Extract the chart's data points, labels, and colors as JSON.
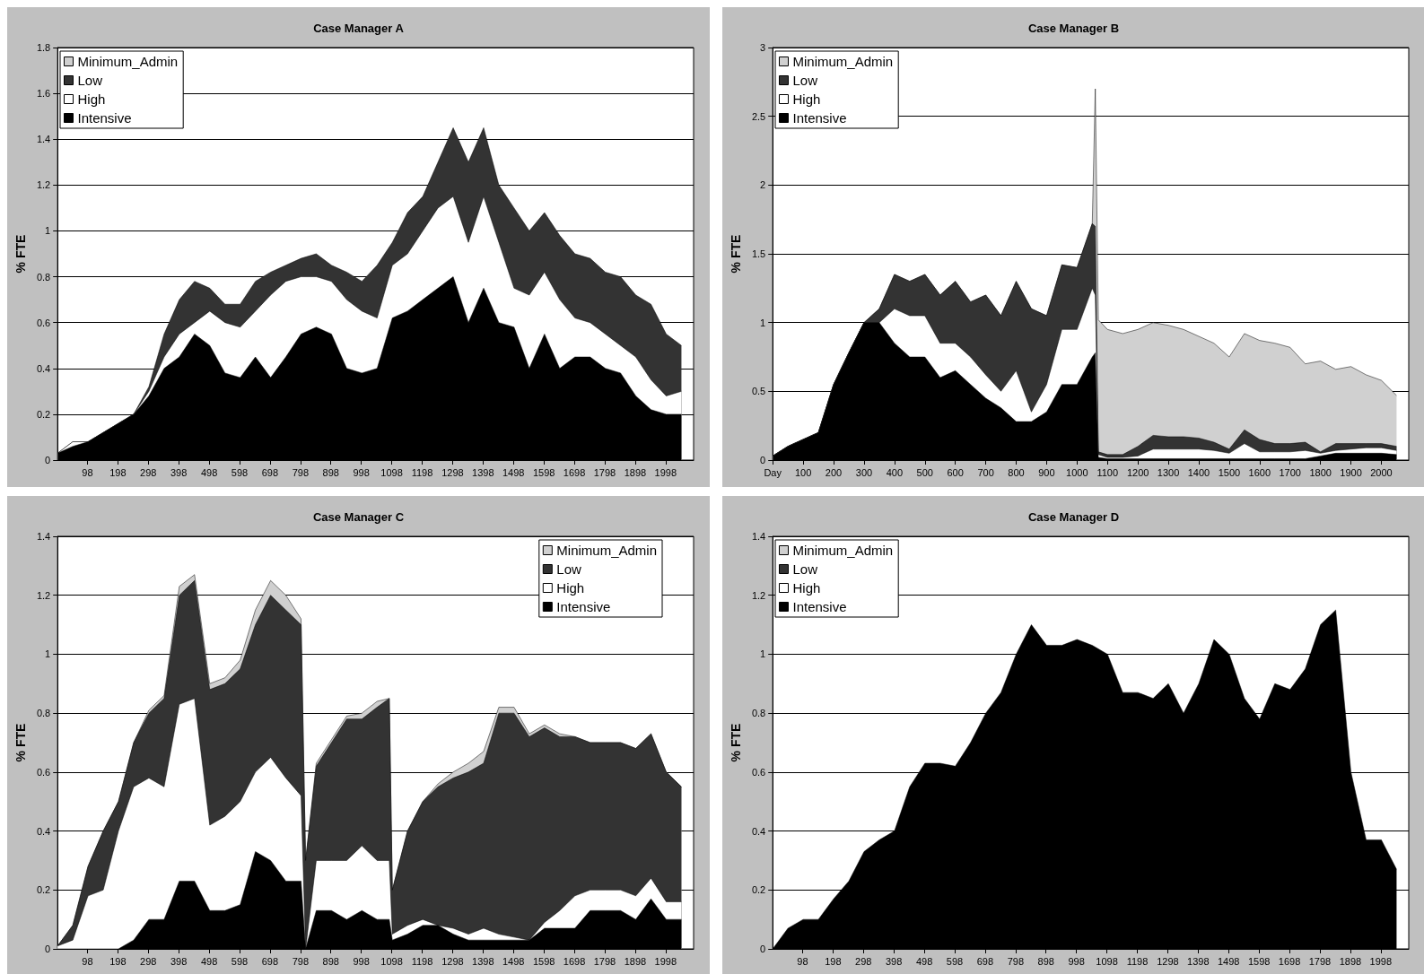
{
  "chart_data": [
    {
      "type": "area",
      "title": "Case Manager A",
      "ylabel": "% FTE",
      "stacked": true,
      "legend": "top left",
      "grid": "y",
      "xlim": [
        0,
        2090
      ],
      "ylim": [
        0,
        1.8
      ],
      "yticks": [
        0,
        0.2,
        0.4,
        0.6,
        0.8,
        1,
        1.2,
        1.4,
        1.6,
        1.8
      ],
      "xticks": [
        98,
        198,
        298,
        398,
        498,
        598,
        698,
        798,
        898,
        998,
        1098,
        1198,
        1298,
        1398,
        1498,
        1598,
        1698,
        1798,
        1898,
        1998
      ],
      "x": [
        0,
        50,
        100,
        150,
        200,
        250,
        300,
        350,
        400,
        450,
        500,
        550,
        600,
        650,
        700,
        750,
        800,
        850,
        900,
        950,
        1000,
        1050,
        1100,
        1150,
        1200,
        1250,
        1300,
        1350,
        1400,
        1450,
        1500,
        1550,
        1600,
        1650,
        1700,
        1750,
        1800,
        1850,
        1900,
        1950,
        2000,
        2050
      ],
      "series": [
        {
          "name": "Intensive",
          "color": "#000000",
          "values": [
            0.03,
            0.06,
            0.08,
            0.12,
            0.16,
            0.2,
            0.28,
            0.4,
            0.45,
            0.55,
            0.5,
            0.38,
            0.36,
            0.45,
            0.36,
            0.45,
            0.55,
            0.58,
            0.55,
            0.4,
            0.38,
            0.4,
            0.62,
            0.65,
            0.7,
            0.75,
            0.8,
            0.6,
            0.75,
            0.6,
            0.58,
            0.4,
            0.55,
            0.4,
            0.45,
            0.45,
            0.4,
            0.38,
            0.28,
            0.22,
            0.2,
            0.2
          ]
        },
        {
          "name": "High",
          "color": "#ffffff",
          "values": [
            0,
            0.02,
            0,
            0,
            0,
            0,
            0.02,
            0.05,
            0.1,
            0.05,
            0.15,
            0.22,
            0.22,
            0.2,
            0.36,
            0.33,
            0.25,
            0.22,
            0.23,
            0.3,
            0.27,
            0.22,
            0.23,
            0.25,
            0.3,
            0.35,
            0.35,
            0.35,
            0.4,
            0.35,
            0.17,
            0.32,
            0.27,
            0.3,
            0.17,
            0.15,
            0.15,
            0.12,
            0.17,
            0.13,
            0.08,
            0.1
          ]
        },
        {
          "name": "Low",
          "color": "#333333",
          "values": [
            0,
            0,
            0,
            0,
            0,
            0,
            0.02,
            0.1,
            0.15,
            0.18,
            0.1,
            0.08,
            0.1,
            0.13,
            0.1,
            0.07,
            0.08,
            0.1,
            0.07,
            0.12,
            0.13,
            0.23,
            0.1,
            0.18,
            0.15,
            0.2,
            0.3,
            0.35,
            0.3,
            0.25,
            0.35,
            0.28,
            0.26,
            0.28,
            0.28,
            0.28,
            0.27,
            0.3,
            0.27,
            0.33,
            0.27,
            0.2
          ]
        },
        {
          "name": "Minimum_Admin",
          "color": "#d0d0d0",
          "values": [
            null,
            null,
            null,
            null,
            null,
            null,
            null,
            null,
            null,
            null,
            null,
            null,
            null,
            null,
            null,
            null,
            null,
            null,
            null,
            null,
            null,
            null,
            null,
            null,
            null,
            null,
            null,
            null,
            null,
            null,
            null,
            null,
            null,
            null,
            null,
            null,
            null,
            null,
            null,
            null,
            null,
            null
          ]
        }
      ]
    },
    {
      "type": "area",
      "title": "Case Manager B",
      "ylabel": "% FTE",
      "stacked": true,
      "legend": "top left",
      "grid": "y",
      "xlim": [
        0,
        2090
      ],
      "ylim": [
        0,
        3
      ],
      "yticks": [
        0,
        0.5,
        1,
        1.5,
        2,
        2.5,
        3
      ],
      "xticks": [
        {
          "value": 0,
          "label": "Day"
        },
        100,
        200,
        300,
        400,
        500,
        600,
        700,
        800,
        900,
        1000,
        1100,
        1200,
        1300,
        1400,
        1500,
        1600,
        1700,
        1800,
        1900,
        2000
      ],
      "x": [
        0,
        50,
        100,
        150,
        200,
        250,
        300,
        350,
        400,
        450,
        500,
        550,
        600,
        650,
        700,
        750,
        800,
        850,
        900,
        950,
        1000,
        1050,
        1060,
        1070,
        1100,
        1150,
        1200,
        1250,
        1300,
        1350,
        1400,
        1450,
        1500,
        1550,
        1600,
        1650,
        1700,
        1750,
        1800,
        1850,
        1900,
        1950,
        2000,
        2050
      ],
      "series": [
        {
          "name": "Intensive",
          "color": "#000000",
          "values": [
            0.03,
            0.1,
            0.15,
            0.2,
            0.55,
            0.78,
            1.0,
            1.0,
            0.85,
            0.75,
            0.75,
            0.6,
            0.65,
            0.55,
            0.45,
            0.38,
            0.28,
            0.28,
            0.35,
            0.55,
            0.55,
            0.75,
            0.78,
            0.02,
            0.01,
            0.01,
            0.01,
            0.01,
            0.01,
            0.01,
            0.01,
            0.01,
            0.01,
            0.01,
            0.01,
            0.01,
            0.01,
            0.01,
            0.03,
            0.05,
            0.05,
            0.05,
            0.05,
            0.04
          ]
        },
        {
          "name": "High",
          "color": "#ffffff",
          "values": [
            0,
            0,
            0,
            0,
            0,
            0,
            0,
            0,
            0.25,
            0.3,
            0.3,
            0.25,
            0.2,
            0.2,
            0.17,
            0.12,
            0.37,
            0.07,
            0.2,
            0.4,
            0.4,
            0.5,
            0.42,
            0.02,
            0.01,
            0.01,
            0.02,
            0.07,
            0.07,
            0.07,
            0.07,
            0.06,
            0.04,
            0.11,
            0.05,
            0.05,
            0.05,
            0.06,
            0.02,
            0.02,
            0.03,
            0.04,
            0.04,
            0.03
          ]
        },
        {
          "name": "Low",
          "color": "#333333",
          "values": [
            0,
            0,
            0,
            0,
            0,
            0,
            0,
            0.1,
            0.25,
            0.25,
            0.3,
            0.35,
            0.45,
            0.4,
            0.58,
            0.55,
            0.65,
            0.75,
            0.5,
            0.47,
            0.45,
            0.47,
            0.5,
            0.02,
            0.02,
            0.02,
            0.07,
            0.1,
            0.09,
            0.09,
            0.08,
            0.06,
            0.03,
            0.1,
            0.09,
            0.06,
            0.06,
            0.06,
            0.01,
            0.05,
            0.04,
            0.03,
            0.03,
            0.03
          ]
        },
        {
          "name": "Minimum_Admin",
          "color": "#d0d0d0",
          "values": [
            0,
            0,
            0,
            0,
            0,
            0,
            0,
            0,
            0,
            0,
            0,
            0,
            0,
            0,
            0,
            0,
            0,
            0,
            0,
            0,
            0,
            0,
            1.0,
            0.96,
            0.91,
            0.88,
            0.85,
            0.82,
            0.81,
            0.78,
            0.74,
            0.72,
            0.67,
            0.7,
            0.72,
            0.73,
            0.7,
            0.57,
            0.66,
            0.54,
            0.56,
            0.5,
            0.46,
            0.37
          ]
        }
      ]
    },
    {
      "type": "area",
      "title": "Case Manager C",
      "ylabel": "% FTE",
      "stacked": true,
      "legend": "top right",
      "grid": "y",
      "xlim": [
        0,
        2090
      ],
      "ylim": [
        0,
        1.4
      ],
      "yticks": [
        0,
        0.2,
        0.4,
        0.6,
        0.8,
        1,
        1.2,
        1.4
      ],
      "xticks": [
        98,
        198,
        298,
        398,
        498,
        598,
        698,
        798,
        898,
        998,
        1098,
        1198,
        1298,
        1398,
        1498,
        1598,
        1698,
        1798,
        1898,
        1998
      ],
      "x": [
        0,
        50,
        100,
        150,
        200,
        250,
        300,
        350,
        400,
        450,
        500,
        550,
        600,
        650,
        700,
        750,
        800,
        815,
        850,
        900,
        950,
        1000,
        1050,
        1090,
        1100,
        1150,
        1200,
        1250,
        1300,
        1350,
        1400,
        1450,
        1500,
        1550,
        1600,
        1650,
        1700,
        1750,
        1800,
        1850,
        1900,
        1950,
        2000,
        2050
      ],
      "series": [
        {
          "name": "Intensive",
          "color": "#000000",
          "values": [
            0,
            0,
            0,
            0,
            0,
            0.03,
            0.1,
            0.1,
            0.23,
            0.23,
            0.13,
            0.13,
            0.15,
            0.33,
            0.3,
            0.23,
            0.23,
            0,
            0.13,
            0.13,
            0.1,
            0.13,
            0.1,
            0.1,
            0.03,
            0.05,
            0.08,
            0.08,
            0.05,
            0.03,
            0.03,
            0.03,
            0.03,
            0.03,
            0.07,
            0.07,
            0.07,
            0.13,
            0.13,
            0.13,
            0.1,
            0.17,
            0.1,
            0.1
          ]
        },
        {
          "name": "High",
          "color": "#ffffff",
          "values": [
            0.01,
            0.03,
            0.18,
            0.2,
            0.4,
            0.52,
            0.48,
            0.45,
            0.6,
            0.62,
            0.29,
            0.32,
            0.35,
            0.27,
            0.35,
            0.35,
            0.29,
            0,
            0.17,
            0.17,
            0.2,
            0.22,
            0.2,
            0.2,
            0.02,
            0.03,
            0.02,
            0,
            0.02,
            0.02,
            0.04,
            0.02,
            0.01,
            0,
            0.02,
            0.06,
            0.11,
            0.07,
            0.07,
            0.07,
            0.08,
            0.07,
            0.06,
            0.06
          ]
        },
        {
          "name": "Low",
          "color": "#333333",
          "values": [
            0,
            0.05,
            0.1,
            0.2,
            0.1,
            0.15,
            0.22,
            0.3,
            0.37,
            0.4,
            0.46,
            0.45,
            0.45,
            0.5,
            0.55,
            0.57,
            0.58,
            0.3,
            0.32,
            0.4,
            0.48,
            0.43,
            0.52,
            0.55,
            0.15,
            0.32,
            0.4,
            0.47,
            0.51,
            0.55,
            0.56,
            0.75,
            0.76,
            0.69,
            0.66,
            0.59,
            0.54,
            0.5,
            0.5,
            0.5,
            0.5,
            0.49,
            0.44,
            0.39
          ]
        },
        {
          "name": "Minimum_Admin",
          "color": "#d0d0d0",
          "values": [
            0,
            0,
            0,
            0,
            0,
            0,
            0.01,
            0.01,
            0.03,
            0.02,
            0.02,
            0.02,
            0.03,
            0.05,
            0.05,
            0.05,
            0.02,
            0,
            0.01,
            0.01,
            0.01,
            0.02,
            0.02,
            0,
            0,
            0,
            0,
            0.01,
            0.02,
            0.03,
            0.04,
            0.02,
            0.02,
            0.01,
            0.01,
            0.01,
            0,
            0,
            0,
            0,
            0,
            0,
            0,
            0
          ]
        }
      ]
    },
    {
      "type": "area",
      "title": "Case Manager D",
      "ylabel": "% FTE",
      "stacked": true,
      "legend": "top left",
      "grid": "y",
      "xlim": [
        0,
        2090
      ],
      "ylim": [
        0,
        1.4
      ],
      "yticks": [
        0,
        0.2,
        0.4,
        0.6,
        0.8,
        1,
        1.2,
        1.4
      ],
      "xticks": [
        98,
        198,
        298,
        398,
        498,
        598,
        698,
        798,
        898,
        998,
        1098,
        1198,
        1298,
        1398,
        1498,
        1598,
        1698,
        1798,
        1898,
        1998
      ],
      "x": [
        0,
        50,
        100,
        150,
        200,
        250,
        300,
        350,
        400,
        450,
        500,
        550,
        600,
        650,
        700,
        750,
        800,
        850,
        900,
        950,
        1000,
        1050,
        1100,
        1150,
        1200,
        1250,
        1300,
        1350,
        1400,
        1450,
        1500,
        1550,
        1600,
        1650,
        1700,
        1750,
        1800,
        1850,
        1900,
        1950,
        2000,
        2050
      ],
      "series": [
        {
          "name": "Intensive",
          "color": "#000000",
          "values": [
            0,
            0.07,
            0.1,
            0.1,
            0.17,
            0.23,
            0.33,
            0.37,
            0.4,
            0.55,
            0.63,
            0.63,
            0.62,
            0.7,
            0.8,
            0.87,
            1.0,
            1.1,
            1.03,
            1.03,
            1.05,
            1.03,
            1.0,
            0.87,
            0.87,
            0.85,
            0.9,
            0.8,
            0.9,
            1.05,
            1.0,
            0.85,
            0.78,
            0.9,
            0.88,
            0.95,
            1.1,
            1.15,
            0.6,
            0.37,
            0.37,
            0.27
          ]
        },
        {
          "name": "High",
          "color": "#ffffff",
          "values": [
            null,
            null,
            null,
            null,
            null,
            null,
            null,
            null,
            null,
            null,
            null,
            null,
            null,
            null,
            null,
            null,
            null,
            null,
            null,
            null,
            null,
            null,
            null,
            null,
            null,
            null,
            null,
            null,
            null,
            null,
            null,
            null,
            null,
            null,
            null,
            null,
            null,
            null,
            null,
            null,
            null,
            null
          ]
        },
        {
          "name": "Low",
          "color": "#333333",
          "values": [
            null,
            null,
            null,
            null,
            null,
            null,
            null,
            null,
            null,
            null,
            null,
            null,
            null,
            null,
            null,
            null,
            null,
            null,
            null,
            null,
            null,
            null,
            null,
            null,
            null,
            null,
            null,
            null,
            null,
            null,
            null,
            null,
            null,
            null,
            null,
            null,
            null,
            null,
            null,
            null,
            null,
            null
          ]
        },
        {
          "name": "Minimum_Admin",
          "color": "#d0d0d0",
          "values": [
            null,
            null,
            null,
            null,
            null,
            null,
            null,
            null,
            null,
            null,
            null,
            null,
            null,
            null,
            null,
            null,
            null,
            null,
            null,
            null,
            null,
            null,
            null,
            null,
            null,
            null,
            null,
            null,
            null,
            null,
            null,
            null,
            null,
            null,
            null,
            null,
            null,
            null,
            null,
            null,
            null,
            null
          ]
        }
      ]
    }
  ]
}
